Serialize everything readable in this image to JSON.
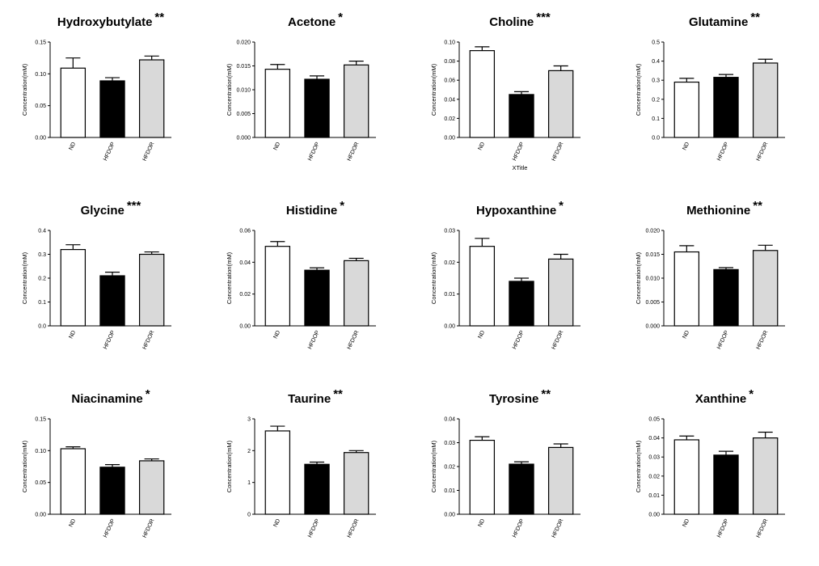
{
  "chart_data": [
    {
      "type": "bar",
      "title": "Hydroxybutylate",
      "annotation": "**",
      "ylabel": "Concentration(mM)",
      "categories": [
        "ND",
        "HFDOP",
        "HFDOR"
      ],
      "values": [
        0.109,
        0.089,
        0.122
      ],
      "errors": [
        0.016,
        0.005,
        0.006
      ],
      "colors": [
        "#ffffff",
        "#000000",
        "#d9d9d9"
      ],
      "ylim": [
        0,
        0.15
      ],
      "yticks": [
        {
          "value": 0,
          "label": "0.00"
        },
        {
          "value": 0.05,
          "label": "0.05"
        },
        {
          "value": 0.1,
          "label": "0.10"
        },
        {
          "value": 0.15,
          "label": "0.15"
        }
      ]
    },
    {
      "type": "bar",
      "title": "Acetone",
      "annotation": "*",
      "ylabel": "Concentration(mM)",
      "categories": [
        "ND",
        "HFDOP",
        "HFDOR"
      ],
      "values": [
        0.0143,
        0.0122,
        0.0152
      ],
      "errors": [
        0.001,
        0.0007,
        0.0008
      ],
      "colors": [
        "#ffffff",
        "#000000",
        "#d9d9d9"
      ],
      "ylim": [
        0,
        0.02
      ],
      "yticks": [
        {
          "value": 0,
          "label": "0.000"
        },
        {
          "value": 0.005,
          "label": "0.005"
        },
        {
          "value": 0.01,
          "label": "0.010"
        },
        {
          "value": 0.015,
          "label": "0.015"
        },
        {
          "value": 0.02,
          "label": "0.020"
        }
      ]
    },
    {
      "type": "bar",
      "title": "Choline",
      "annotation": "***",
      "ylabel": "Concentration(mM)",
      "xlabel": "XTitle",
      "categories": [
        "ND",
        "HFDOP",
        "HFDOR"
      ],
      "values": [
        0.091,
        0.045,
        0.07
      ],
      "errors": [
        0.004,
        0.003,
        0.005
      ],
      "colors": [
        "#ffffff",
        "#000000",
        "#d9d9d9"
      ],
      "ylim": [
        0,
        0.1
      ],
      "yticks": [
        {
          "value": 0,
          "label": "0.00"
        },
        {
          "value": 0.02,
          "label": "0.02"
        },
        {
          "value": 0.04,
          "label": "0.04"
        },
        {
          "value": 0.06,
          "label": "0.06"
        },
        {
          "value": 0.08,
          "label": "0.08"
        },
        {
          "value": 0.1,
          "label": "0.10"
        }
      ]
    },
    {
      "type": "bar",
      "title": "Glutamine",
      "annotation": "**",
      "ylabel": "Concentration(mM)",
      "categories": [
        "ND",
        "HFDOP",
        "HFDOR"
      ],
      "values": [
        0.29,
        0.315,
        0.39
      ],
      "errors": [
        0.02,
        0.015,
        0.02
      ],
      "colors": [
        "#ffffff",
        "#000000",
        "#d9d9d9"
      ],
      "ylim": [
        0,
        0.5
      ],
      "yticks": [
        {
          "value": 0,
          "label": "0.0"
        },
        0.1,
        0.2,
        0.3,
        0.4,
        0.5
      ]
    },
    {
      "type": "bar",
      "title": "Glycine",
      "annotation": "***",
      "ylabel": "Concentration(mM)",
      "categories": [
        "ND",
        "HFDOP",
        "HFDOR"
      ],
      "values": [
        0.32,
        0.21,
        0.3
      ],
      "errors": [
        0.02,
        0.015,
        0.01
      ],
      "colors": [
        "#ffffff",
        "#000000",
        "#d9d9d9"
      ],
      "ylim": [
        0,
        0.4
      ],
      "yticks": [
        {
          "value": 0,
          "label": "0.0"
        },
        0.1,
        0.2,
        0.3,
        0.4
      ]
    },
    {
      "type": "bar",
      "title": "Histidine",
      "annotation": "*",
      "ylabel": "Concentration(mM)",
      "categories": [
        "ND",
        "HFDOP",
        "HFDOR"
      ],
      "values": [
        0.05,
        0.035,
        0.041
      ],
      "errors": [
        0.003,
        0.0015,
        0.0015
      ],
      "colors": [
        "#ffffff",
        "#000000",
        "#d9d9d9"
      ],
      "ylim": [
        0,
        0.06
      ],
      "yticks": [
        {
          "value": 0,
          "label": "0.00"
        },
        0.02,
        0.04,
        0.06
      ]
    },
    {
      "type": "bar",
      "title": "Hypoxanthine",
      "annotation": "*",
      "ylabel": "Concentration(mM)",
      "categories": [
        "ND",
        "HFDOP",
        "HFDOR"
      ],
      "values": [
        0.025,
        0.014,
        0.021
      ],
      "errors": [
        0.0025,
        0.001,
        0.0015
      ],
      "colors": [
        "#ffffff",
        "#000000",
        "#d9d9d9"
      ],
      "ylim": [
        0,
        0.03
      ],
      "yticks": [
        {
          "value": 0,
          "label": "0.00"
        },
        0.01,
        0.02,
        0.03
      ]
    },
    {
      "type": "bar",
      "title": "Methionine",
      "annotation": "**",
      "ylabel": "Concentration(mM)",
      "categories": [
        "ND",
        "HFDOP",
        "HFDOR"
      ],
      "values": [
        0.0155,
        0.0118,
        0.0158
      ],
      "errors": [
        0.0013,
        0.0004,
        0.0011
      ],
      "colors": [
        "#ffffff",
        "#000000",
        "#d9d9d9"
      ],
      "ylim": [
        0,
        0.02
      ],
      "yticks": [
        {
          "value": 0,
          "label": "0.000"
        },
        {
          "value": 0.005,
          "label": "0.005"
        },
        {
          "value": 0.01,
          "label": "0.010"
        },
        {
          "value": 0.015,
          "label": "0.015"
        },
        {
          "value": 0.02,
          "label": "0.020"
        }
      ]
    },
    {
      "type": "bar",
      "title": "Niacinamine",
      "annotation": "*",
      "ylabel": "Concentration(mM)",
      "categories": [
        "ND",
        "HFDOP",
        "HFDOR"
      ],
      "values": [
        0.103,
        0.074,
        0.084
      ],
      "errors": [
        0.003,
        0.004,
        0.003
      ],
      "colors": [
        "#ffffff",
        "#000000",
        "#d9d9d9"
      ],
      "ylim": [
        0,
        0.15
      ],
      "yticks": [
        {
          "value": 0,
          "label": "0.00"
        },
        {
          "value": 0.05,
          "label": "0.05"
        },
        {
          "value": 0.1,
          "label": "0.10"
        },
        {
          "value": 0.15,
          "label": "0.15"
        }
      ]
    },
    {
      "type": "bar",
      "title": "Taurine",
      "annotation": "**",
      "ylabel": "Concentration(mM)",
      "categories": [
        "ND",
        "HFDOP",
        "HFDOR"
      ],
      "values": [
        2.62,
        1.57,
        1.94
      ],
      "errors": [
        0.15,
        0.07,
        0.06
      ],
      "colors": [
        "#ffffff",
        "#000000",
        "#d9d9d9"
      ],
      "ylim": [
        0,
        3
      ],
      "yticks": [
        0,
        1,
        2,
        3
      ]
    },
    {
      "type": "bar",
      "title": "Tyrosine",
      "annotation": "**",
      "ylabel": "Concentration(mM)",
      "categories": [
        "ND",
        "HFDOP",
        "HFDOR"
      ],
      "values": [
        0.031,
        0.021,
        0.028
      ],
      "errors": [
        0.0015,
        0.001,
        0.0015
      ],
      "colors": [
        "#ffffff",
        "#000000",
        "#d9d9d9"
      ],
      "ylim": [
        0,
        0.04
      ],
      "yticks": [
        {
          "value": 0,
          "label": "0.00"
        },
        0.01,
        0.02,
        0.03,
        0.04
      ]
    },
    {
      "type": "bar",
      "title": "Xanthine",
      "annotation": "*",
      "ylabel": "Concentration(mM)",
      "categories": [
        "ND",
        "HFDOP",
        "HFDOR"
      ],
      "values": [
        0.039,
        0.031,
        0.04
      ],
      "errors": [
        0.002,
        0.002,
        0.003
      ],
      "colors": [
        "#ffffff",
        "#000000",
        "#d9d9d9"
      ],
      "ylim": [
        0,
        0.05
      ],
      "yticks": [
        {
          "value": 0,
          "label": "0.00"
        },
        0.01,
        0.02,
        0.03,
        0.04,
        0.05
      ]
    }
  ]
}
